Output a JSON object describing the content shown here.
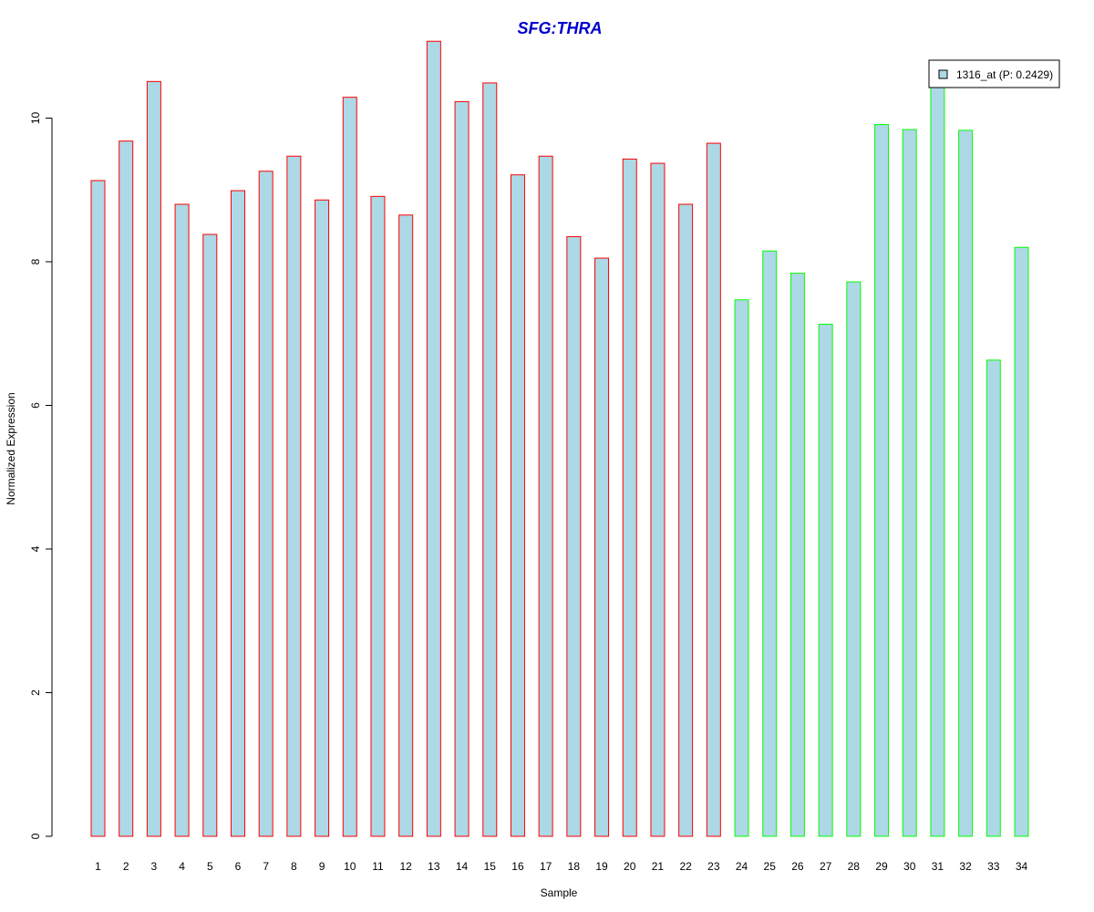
{
  "chart_data": {
    "type": "bar",
    "title": "SFG:THRA",
    "xlabel": "Sample",
    "ylabel": "Normalized Expression",
    "categories": [
      "1",
      "2",
      "3",
      "4",
      "5",
      "6",
      "7",
      "8",
      "9",
      "10",
      "11",
      "12",
      "13",
      "14",
      "15",
      "16",
      "17",
      "18",
      "19",
      "20",
      "21",
      "22",
      "23",
      "24",
      "25",
      "26",
      "27",
      "28",
      "29",
      "30",
      "31",
      "32",
      "33",
      "34"
    ],
    "series": [
      {
        "name": "1316_at (P: 0.2429)",
        "values": [
          9.13,
          9.68,
          10.51,
          8.8,
          8.38,
          8.99,
          9.26,
          9.47,
          8.86,
          10.29,
          8.91,
          8.65,
          11.07,
          10.23,
          10.49,
          9.21,
          9.47,
          8.35,
          8.05,
          9.43,
          9.37,
          8.8,
          9.65,
          7.47,
          8.15,
          7.84,
          7.13,
          7.72,
          9.91,
          9.84,
          10.59,
          9.83,
          6.63,
          8.2
        ]
      }
    ],
    "yticks": [
      0,
      2,
      4,
      6,
      8,
      10
    ],
    "ylim": [
      0,
      11.2
    ],
    "grid": false,
    "legend_position": "top-right",
    "colors": {
      "bar_fill": "#ADD8E6",
      "group1_border": "#FF0000",
      "group2_border": "#00FF00",
      "title": "#0000CD",
      "axis": "#000000"
    },
    "groups": [
      {
        "border_color": "#FF0000",
        "count": 23
      },
      {
        "border_color": "#00FF00",
        "count": 11
      }
    ]
  }
}
